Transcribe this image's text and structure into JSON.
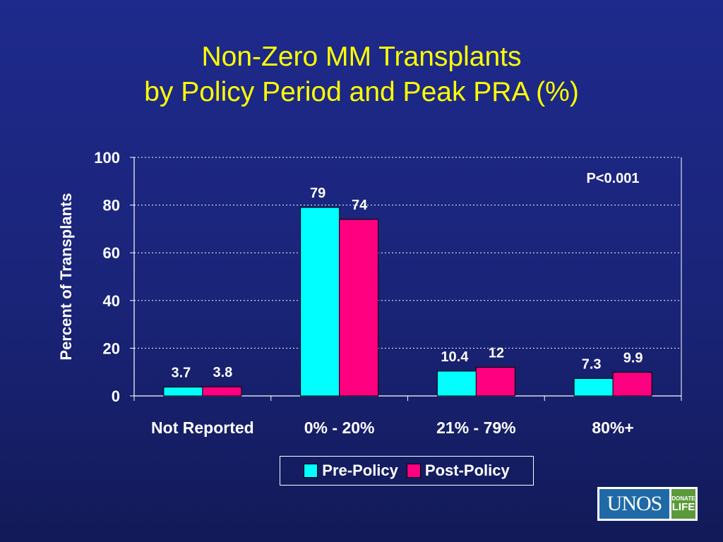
{
  "slide": {
    "title_line1": "Non-Zero MM Transplants",
    "title_line2": "by Policy Period and Peak PRA (%)"
  },
  "chart_data": {
    "type": "bar",
    "title": "Non-Zero MM Transplants by Policy Period and Peak PRA (%)",
    "xlabel": "",
    "ylabel": "Percent of Transplants",
    "categories": [
      "Not Reported",
      "0% - 20%",
      "21% - 79%",
      "80%+"
    ],
    "series": [
      {
        "name": "Pre-Policy",
        "color": "#00ffff",
        "values": [
          3.7,
          79,
          10.4,
          7.3
        ],
        "labels": [
          "3.7",
          "79",
          "10.4",
          "7.3"
        ]
      },
      {
        "name": "Post-Policy",
        "color": "#ff0080",
        "values": [
          3.8,
          74,
          12,
          9.9
        ],
        "labels": [
          "3.8",
          "74",
          "12",
          "9.9"
        ]
      }
    ],
    "ylim": [
      0,
      100
    ],
    "yticks": [
      "0",
      "20",
      "40",
      "60",
      "80",
      "100"
    ],
    "grid": true,
    "legend": "bottom",
    "annotation": "P<0.001"
  },
  "logo": {
    "main": "UNOS",
    "side_line1": "DONATE",
    "side_line2": "LIFE"
  }
}
